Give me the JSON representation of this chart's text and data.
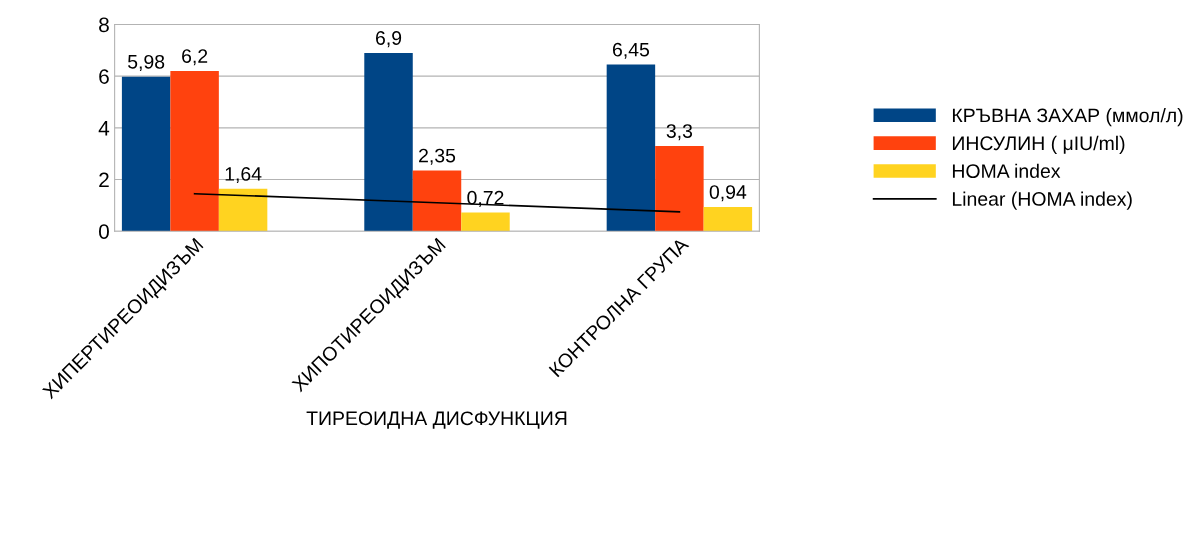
{
  "chart_data": {
    "type": "bar",
    "xlabel": "ТИРЕОИДНА ДИСФУНКЦИЯ",
    "categories": [
      "ХИПЕРТИРЕОИДИЗЪМ",
      "ХИПОТИРЕОИДИЗЪМ",
      "КОНТРОЛНА ГРУПА"
    ],
    "series": [
      {
        "name": "КРЪВНА ЗАХАР (ммол/л)",
        "color": "#004586",
        "values": [
          5.98,
          6.9,
          6.45
        ],
        "value_labels": [
          "5,98",
          "6,9",
          "6,45"
        ]
      },
      {
        "name": "ИНСУЛИН ( μIU/ml)",
        "color": "#ff420e",
        "values": [
          6.2,
          2.35,
          3.3
        ],
        "value_labels": [
          "6,2",
          "2,35",
          "3,3"
        ]
      },
      {
        "name": "HOMA index",
        "color": "#ffd320",
        "values": [
          1.64,
          0.72,
          0.94
        ],
        "value_labels": [
          "1,64",
          "0,72",
          "0,94"
        ]
      },
      {
        "name": "Linear (HOMA index)",
        "type": "line",
        "color": "#000000",
        "values": [
          1.45,
          1.1,
          0.75
        ]
      }
    ],
    "ylim": [
      0,
      8
    ],
    "yticks": [
      0,
      2,
      4,
      6,
      8
    ],
    "grid": "y",
    "legend": "right"
  }
}
